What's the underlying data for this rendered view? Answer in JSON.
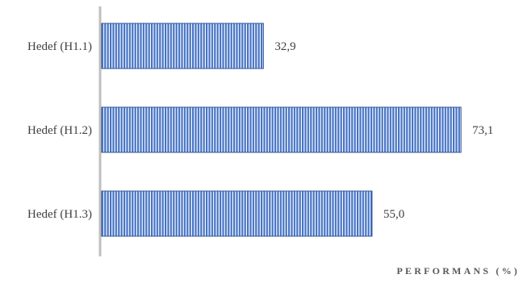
{
  "chart_data": {
    "type": "bar",
    "orientation": "horizontal",
    "categories": [
      "Hedef (H1.1)",
      "Hedef (H1.2)",
      "Hedef (H1.3)"
    ],
    "values": [
      32.9,
      73.1,
      55.0
    ],
    "value_labels": [
      "32,9",
      "73,1",
      "55,0"
    ],
    "title": "",
    "xlabel": "PERFORMANS (%)",
    "ylabel": "",
    "xlim": [
      0,
      80
    ],
    "grid": false,
    "legend": false,
    "colors": {
      "bar_fill": "#4472C4",
      "bar_stripe": "#ffffff",
      "bar_edge": "#2F5597",
      "axis": "#bfbfbf",
      "text": "#404040"
    }
  }
}
